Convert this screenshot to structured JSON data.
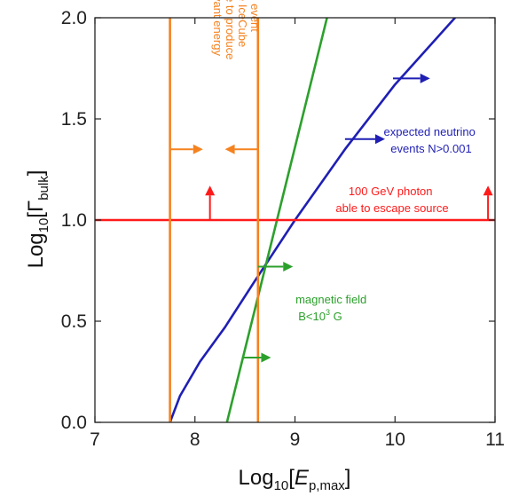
{
  "chart_data": {
    "type": "line",
    "xlabel": {
      "pre": "Log",
      "sub": "10",
      "bracket_open": "[",
      "var": "E",
      "var_sub": "p,max",
      "bracket_close": "]"
    },
    "ylabel": {
      "pre": "Log",
      "sub": "10",
      "bracket_open": "[",
      "var": "Γ",
      "var_sub": "bulk",
      "bracket_close": "]"
    },
    "xlim": [
      7,
      11
    ],
    "ylim": [
      0.0,
      2.0
    ],
    "xticks": [
      7,
      8,
      9,
      10,
      11
    ],
    "xtick_labels": [
      "7",
      "8",
      "9",
      "10",
      "11"
    ],
    "yticks": [
      0.0,
      0.5,
      1.0,
      1.5,
      2.0
    ],
    "ytick_labels": [
      "0.0",
      "0.5",
      "1.0",
      "1.5",
      "2.0"
    ],
    "grid": false,
    "series": [
      {
        "key": "neutrino",
        "color": "#1f1fb4",
        "x": [
          7.75,
          7.85,
          8.05,
          8.3,
          8.6,
          9.0,
          9.5,
          10.0,
          10.6
        ],
        "y": [
          0.0,
          0.13,
          0.3,
          0.47,
          0.7,
          1.0,
          1.35,
          1.67,
          2.0
        ]
      },
      {
        "key": "magnetic",
        "color": "#2ca02c",
        "x": [
          8.32,
          9.32
        ],
        "y": [
          0.0,
          2.0
        ]
      },
      {
        "key": "photon",
        "color": "#ff1a1a",
        "x": [
          7.0,
          11.0
        ],
        "y": [
          1.0,
          1.0
        ]
      },
      {
        "key": "energy-lower",
        "color": "#f5821f",
        "x": [
          7.75,
          7.75
        ],
        "y": [
          0.0,
          2.0
        ]
      },
      {
        "key": "energy-upper",
        "color": "#f5821f",
        "x": [
          8.63,
          8.63
        ],
        "y": [
          0.0,
          2.0
        ]
      }
    ],
    "arrows": [
      {
        "key": "orange-right",
        "color": "#f5821f",
        "x1": 7.75,
        "y1": 1.35,
        "x2": 8.08,
        "y2": 1.35
      },
      {
        "key": "orange-left",
        "color": "#f5821f",
        "x1": 8.63,
        "y1": 1.35,
        "x2": 8.3,
        "y2": 1.35
      },
      {
        "key": "red-up-left",
        "color": "#ff1a1a",
        "x1": 8.15,
        "y1": 1.0,
        "x2": 8.15,
        "y2": 1.17
      },
      {
        "key": "red-up-right",
        "color": "#ff1a1a",
        "x1": 10.93,
        "y1": 1.0,
        "x2": 10.93,
        "y2": 1.17
      },
      {
        "key": "green-right-mid",
        "color": "#2ca02c",
        "x1": 8.63,
        "y1": 0.77,
        "x2": 8.98,
        "y2": 0.77
      },
      {
        "key": "green-right-low",
        "color": "#2ca02c",
        "x1": 8.47,
        "y1": 0.32,
        "x2": 8.76,
        "y2": 0.32
      },
      {
        "key": "blue-right-upper",
        "color": "#1f1fb4",
        "x1": 9.98,
        "y1": 1.7,
        "x2": 10.35,
        "y2": 1.7
      },
      {
        "key": "blue-right-lower",
        "color": "#1f1fb4",
        "x1": 9.5,
        "y1": 1.4,
        "x2": 9.9,
        "y2": 1.4
      }
    ],
    "annotations": {
      "orange_lines": [
        "relevant energy",
        "range to produce",
        "the IceCube",
        "event"
      ],
      "neutrino_lines": [
        "expected neutrino",
        "events N>0.001"
      ],
      "photon_lines": [
        "100 GeV photon",
        "able to escape source"
      ],
      "magnetic_line1": "magnetic field",
      "magnetic_line2_pre": "B<10",
      "magnetic_line2_sup": "3",
      "magnetic_line2_post": " G"
    },
    "colors": {
      "orange": "#f5821f",
      "blue": "#1f1fb4",
      "green": "#2ca02c",
      "red": "#ff1a1a",
      "axis": "#222222"
    }
  }
}
